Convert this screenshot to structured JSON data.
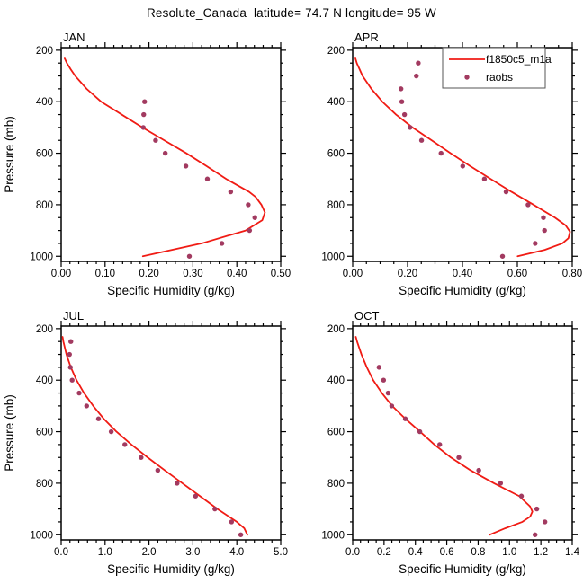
{
  "title": "Resolute_Canada  latitude= 74.7 N longitude= 95 W",
  "colors": {
    "model_line": "#f01b14",
    "raobs_dot": "#a23a60",
    "axis": "#000000",
    "legend_border": "#555555",
    "background": "#ffffff"
  },
  "legend": {
    "panel": "APR",
    "entries": [
      {
        "label": "f1850c5_m1a",
        "marker": "line"
      },
      {
        "label": "raobs",
        "marker": "dot"
      }
    ]
  },
  "axes": {
    "xlabel": "Specific Humidity (g/kg)",
    "ylabel": "Pressure (mb)",
    "y_range": [
      190,
      1020
    ],
    "y_tick_values": [
      200,
      400,
      600,
      800,
      1000
    ],
    "y_tick_labels": [
      "200",
      "400",
      "600",
      "800",
      "1000"
    ],
    "y_minor_step": 50,
    "grid": false
  },
  "chart_data": [
    {
      "type": "line",
      "month": "JAN",
      "x_max": 0.5,
      "x_major": 0.1,
      "x_minor": 0.02,
      "x_tick_labels": [
        "0.00",
        "0.10",
        "0.20",
        "0.30",
        "0.40",
        "0.50"
      ],
      "show_ylabel": true,
      "show_legend": false,
      "series": [
        {
          "name": "f1850c5_m1a",
          "type": "line",
          "points": [
            [
              232,
              0.008
            ],
            [
              250,
              0.013
            ],
            [
              275,
              0.022
            ],
            [
              300,
              0.032
            ],
            [
              350,
              0.058
            ],
            [
              400,
              0.091
            ],
            [
              450,
              0.138
            ],
            [
              500,
              0.185
            ],
            [
              550,
              0.235
            ],
            [
              600,
              0.285
            ],
            [
              650,
              0.331
            ],
            [
              700,
              0.376
            ],
            [
              750,
              0.428
            ],
            [
              770,
              0.443
            ],
            [
              800,
              0.456
            ],
            [
              830,
              0.464
            ],
            [
              860,
              0.458
            ],
            [
              900,
              0.42
            ],
            [
              950,
              0.32
            ],
            [
              1000,
              0.186
            ]
          ]
        },
        {
          "name": "raobs",
          "type": "scatter",
          "points": [
            [
              400,
              0.19
            ],
            [
              450,
              0.188
            ],
            [
              500,
              0.187
            ],
            [
              550,
              0.215
            ],
            [
              600,
              0.237
            ],
            [
              650,
              0.284
            ],
            [
              700,
              0.333
            ],
            [
              750,
              0.386
            ],
            [
              800,
              0.426
            ],
            [
              850,
              0.441
            ],
            [
              900,
              0.429
            ],
            [
              950,
              0.366
            ],
            [
              1000,
              0.292
            ]
          ]
        }
      ]
    },
    {
      "type": "line",
      "month": "APR",
      "x_max": 0.8,
      "x_major": 0.2,
      "x_minor": 0.05,
      "x_tick_labels": [
        "0.00",
        "0.20",
        "0.40",
        "0.60",
        "0.80"
      ],
      "show_ylabel": false,
      "show_legend": true,
      "series": [
        {
          "name": "f1850c5_m1a",
          "type": "line",
          "points": [
            [
              232,
              0.01
            ],
            [
              250,
              0.015
            ],
            [
              300,
              0.036
            ],
            [
              350,
              0.068
            ],
            [
              400,
              0.108
            ],
            [
              450,
              0.158
            ],
            [
              500,
              0.218
            ],
            [
              550,
              0.288
            ],
            [
              600,
              0.357
            ],
            [
              650,
              0.428
            ],
            [
              700,
              0.503
            ],
            [
              750,
              0.579
            ],
            [
              800,
              0.659
            ],
            [
              850,
              0.737
            ],
            [
              880,
              0.776
            ],
            [
              905,
              0.792
            ],
            [
              930,
              0.786
            ],
            [
              950,
              0.764
            ],
            [
              975,
              0.7
            ],
            [
              1000,
              0.601
            ]
          ]
        },
        {
          "name": "raobs",
          "type": "scatter",
          "points": [
            [
              250,
              0.239
            ],
            [
              300,
              0.232
            ],
            [
              350,
              0.176
            ],
            [
              400,
              0.179
            ],
            [
              450,
              0.189
            ],
            [
              500,
              0.209
            ],
            [
              550,
              0.251
            ],
            [
              600,
              0.322
            ],
            [
              650,
              0.401
            ],
            [
              700,
              0.48
            ],
            [
              750,
              0.559
            ],
            [
              800,
              0.639
            ],
            [
              850,
              0.695
            ],
            [
              900,
              0.699
            ],
            [
              950,
              0.665
            ],
            [
              1000,
              0.546
            ]
          ]
        }
      ]
    },
    {
      "type": "line",
      "month": "JUL",
      "x_max": 5.0,
      "x_major": 1.0,
      "x_minor": 0.2,
      "x_tick_labels": [
        "0.0",
        "1.0",
        "2.0",
        "3.0",
        "4.0",
        "5.0"
      ],
      "show_ylabel": true,
      "show_legend": false,
      "series": [
        {
          "name": "f1850c5_m1a",
          "type": "line",
          "points": [
            [
              232,
              0.032
            ],
            [
              250,
              0.05
            ],
            [
              300,
              0.12
            ],
            [
              350,
              0.22
            ],
            [
              400,
              0.35
            ],
            [
              450,
              0.52
            ],
            [
              500,
              0.73
            ],
            [
              550,
              0.97
            ],
            [
              600,
              1.26
            ],
            [
              650,
              1.6
            ],
            [
              700,
              1.97
            ],
            [
              750,
              2.36
            ],
            [
              800,
              2.76
            ],
            [
              850,
              3.16
            ],
            [
              900,
              3.56
            ],
            [
              950,
              4.0
            ],
            [
              975,
              4.17
            ],
            [
              1000,
              4.24
            ]
          ]
        },
        {
          "name": "raobs",
          "type": "scatter",
          "points": [
            [
              250,
              0.22
            ],
            [
              300,
              0.19
            ],
            [
              350,
              0.21
            ],
            [
              400,
              0.25
            ],
            [
              450,
              0.41
            ],
            [
              500,
              0.58
            ],
            [
              550,
              0.85
            ],
            [
              600,
              1.14
            ],
            [
              650,
              1.45
            ],
            [
              700,
              1.82
            ],
            [
              750,
              2.2
            ],
            [
              800,
              2.64
            ],
            [
              850,
              3.06
            ],
            [
              900,
              3.5
            ],
            [
              950,
              3.88
            ],
            [
              1000,
              4.09
            ]
          ]
        }
      ]
    },
    {
      "type": "line",
      "month": "OCT",
      "x_max": 1.4,
      "x_major": 0.2,
      "x_minor": 0.05,
      "x_tick_labels": [
        "0.0",
        "0.2",
        "0.4",
        "0.6",
        "0.8",
        "1.0",
        "1.2",
        "1.4"
      ],
      "show_ylabel": false,
      "show_legend": false,
      "series": [
        {
          "name": "f1850c5_m1a",
          "type": "line",
          "points": [
            [
              232,
              0.02
            ],
            [
              250,
              0.028
            ],
            [
              300,
              0.056
            ],
            [
              350,
              0.09
            ],
            [
              400,
              0.131
            ],
            [
              450,
              0.186
            ],
            [
              500,
              0.252
            ],
            [
              550,
              0.336
            ],
            [
              600,
              0.43
            ],
            [
              650,
              0.521
            ],
            [
              700,
              0.626
            ],
            [
              750,
              0.752
            ],
            [
              800,
              0.901
            ],
            [
              850,
              1.062
            ],
            [
              890,
              1.131
            ],
            [
              910,
              1.146
            ],
            [
              930,
              1.131
            ],
            [
              950,
              1.082
            ],
            [
              975,
              0.972
            ],
            [
              1000,
              0.873
            ]
          ]
        },
        {
          "name": "raobs",
          "type": "scatter",
          "points": [
            [
              350,
              0.168
            ],
            [
              400,
              0.197
            ],
            [
              450,
              0.226
            ],
            [
              500,
              0.249
            ],
            [
              550,
              0.336
            ],
            [
              600,
              0.428
            ],
            [
              650,
              0.555
            ],
            [
              700,
              0.677
            ],
            [
              750,
              0.804
            ],
            [
              800,
              0.943
            ],
            [
              850,
              1.076
            ],
            [
              900,
              1.174
            ],
            [
              950,
              1.226
            ],
            [
              1000,
              1.163
            ]
          ]
        }
      ]
    }
  ]
}
